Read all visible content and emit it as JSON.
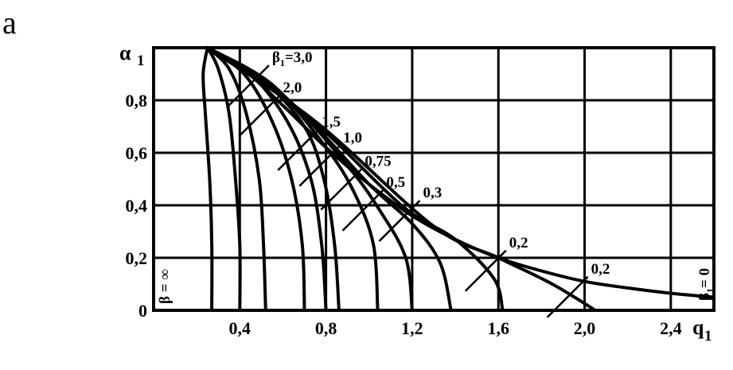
{
  "panel_label": "a",
  "chart_data": {
    "type": "line",
    "title": "",
    "xlabel": "q",
    "xlabel_sub": "1",
    "ylabel": "α",
    "ylabel_sub": "1",
    "xlim": [
      0.0,
      2.6
    ],
    "ylim": [
      0.0,
      1.0
    ],
    "grid": true,
    "x_ticks": [
      "0,4",
      "0,8",
      "1,2",
      "1,6",
      "2,0",
      "2,4"
    ],
    "x_tick_values": [
      0.4,
      0.8,
      1.2,
      1.6,
      2.0,
      2.4
    ],
    "y_ticks": [
      "0",
      "0,2",
      "0,4",
      "0,6",
      "0,8"
    ],
    "y_tick_values": [
      0,
      0.2,
      0.4,
      0.6,
      0.8
    ],
    "envelope": {
      "name": "β₁ = 0",
      "label": "β",
      "label_sub": "1",
      "label_rest": "= 0",
      "points": [
        [
          0.25,
          1.0
        ],
        [
          0.4,
          0.93
        ],
        [
          0.6,
          0.78
        ],
        [
          0.8,
          0.62
        ],
        [
          1.0,
          0.48
        ],
        [
          1.2,
          0.36
        ],
        [
          1.4,
          0.27
        ],
        [
          1.6,
          0.2
        ],
        [
          1.8,
          0.15
        ],
        [
          2.0,
          0.11
        ],
        [
          2.2,
          0.085
        ],
        [
          2.4,
          0.065
        ],
        [
          2.6,
          0.05
        ]
      ]
    },
    "series": [
      {
        "name": "∞",
        "points": [
          [
            0.25,
            1.0
          ],
          [
            0.23,
            0.9
          ],
          [
            0.24,
            0.75
          ],
          [
            0.26,
            0.5
          ],
          [
            0.27,
            0.25
          ],
          [
            0.27,
            0.0
          ]
        ]
      },
      {
        "name": "",
        "points": [
          [
            0.25,
            1.0
          ],
          [
            0.3,
            0.92
          ],
          [
            0.35,
            0.75
          ],
          [
            0.38,
            0.5
          ],
          [
            0.4,
            0.25
          ],
          [
            0.4,
            0.0
          ]
        ]
      },
      {
        "name": "3,0",
        "points": [
          [
            0.25,
            1.0
          ],
          [
            0.35,
            0.92
          ],
          [
            0.43,
            0.75
          ],
          [
            0.49,
            0.5
          ],
          [
            0.51,
            0.25
          ],
          [
            0.52,
            0.0
          ]
        ]
      },
      {
        "name": "2,0",
        "points": [
          [
            0.25,
            1.0
          ],
          [
            0.42,
            0.9
          ],
          [
            0.55,
            0.72
          ],
          [
            0.64,
            0.5
          ],
          [
            0.69,
            0.25
          ],
          [
            0.7,
            0.0
          ]
        ]
      },
      {
        "name": "1,5",
        "points": [
          [
            0.25,
            1.0
          ],
          [
            0.45,
            0.9
          ],
          [
            0.62,
            0.72
          ],
          [
            0.73,
            0.5
          ],
          [
            0.78,
            0.25
          ],
          [
            0.8,
            0.0
          ]
        ]
      },
      {
        "name": "1,0",
        "points": [
          [
            0.25,
            1.0
          ],
          [
            0.5,
            0.88
          ],
          [
            0.7,
            0.7
          ],
          [
            0.79,
            0.5
          ],
          [
            0.84,
            0.25
          ],
          [
            0.86,
            0.0
          ]
        ]
      },
      {
        "name": "0,75",
        "points": [
          [
            0.25,
            1.0
          ],
          [
            0.55,
            0.86
          ],
          [
            0.8,
            0.62
          ],
          [
            0.93,
            0.45
          ],
          [
            1.02,
            0.25
          ],
          [
            1.04,
            0.0
          ]
        ]
      },
      {
        "name": "0,5",
        "points": [
          [
            0.25,
            1.0
          ],
          [
            0.6,
            0.82
          ],
          [
            0.9,
            0.55
          ],
          [
            1.05,
            0.38
          ],
          [
            1.17,
            0.2
          ],
          [
            1.2,
            0.0
          ]
        ]
      },
      {
        "name": "0,3",
        "points": [
          [
            0.25,
            1.0
          ],
          [
            0.65,
            0.78
          ],
          [
            1.0,
            0.48
          ],
          [
            1.2,
            0.33
          ],
          [
            1.33,
            0.18
          ],
          [
            1.38,
            0.0
          ]
        ]
      },
      {
        "name": "0,2",
        "points": [
          [
            0.25,
            1.0
          ],
          [
            0.7,
            0.75
          ],
          [
            1.15,
            0.4
          ],
          [
            1.4,
            0.27
          ],
          [
            1.58,
            0.12
          ],
          [
            1.62,
            0.0
          ]
        ]
      },
      {
        "name": "0,2",
        "points": [
          [
            0.25,
            1.0
          ],
          [
            0.75,
            0.72
          ],
          [
            1.3,
            0.32
          ],
          [
            1.6,
            0.2
          ],
          [
            1.85,
            0.1
          ],
          [
            2.05,
            0.0
          ]
        ]
      }
    ],
    "annotations": [
      {
        "text": "β",
        "sub": "1",
        "rest": "=3,0",
        "x": 0.55,
        "y": 0.945
      },
      {
        "text": "2,0",
        "x": 0.6,
        "y": 0.83
      },
      {
        "text": "1,5",
        "x": 0.78,
        "y": 0.7
      },
      {
        "text": "1,0",
        "x": 0.88,
        "y": 0.64
      },
      {
        "text": "0,75",
        "x": 0.98,
        "y": 0.55
      },
      {
        "text": "0,5",
        "x": 1.08,
        "y": 0.47
      },
      {
        "text": "0,3",
        "x": 1.25,
        "y": 0.43
      },
      {
        "text": "0,2",
        "x": 1.65,
        "y": 0.24
      },
      {
        "text": "0,2",
        "x": 2.03,
        "y": 0.14
      }
    ],
    "left_label": {
      "text": "β = ∞"
    }
  }
}
